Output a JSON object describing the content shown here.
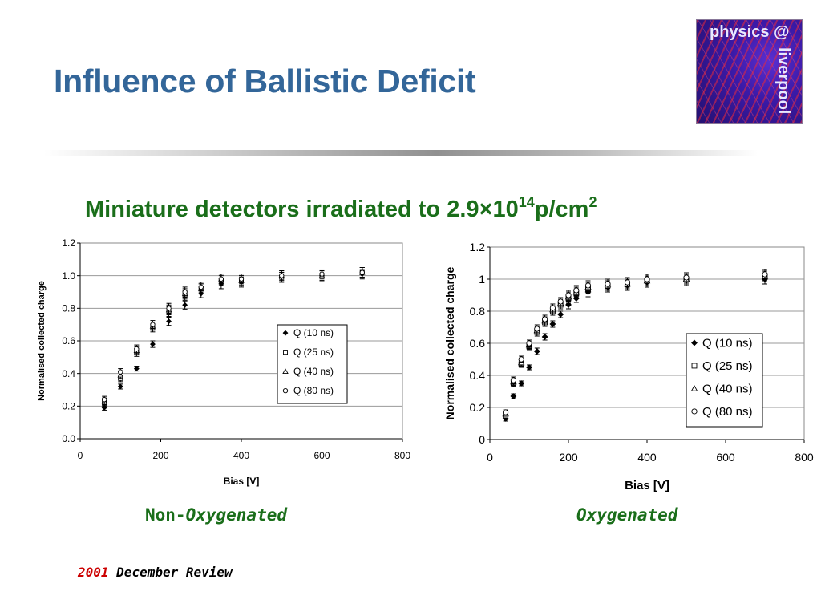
{
  "slide": {
    "title": "Influence of Ballistic Deficit",
    "subtitle_main": "Miniature detectors irradiated to 2.9×10",
    "subtitle_exp": "14",
    "subtitle_unit": "p/cm",
    "subtitle_unit_exp": "2",
    "footer_year": "2001",
    "footer_text": "December Review"
  },
  "logo": {
    "top": "physics @",
    "side": "liverpool"
  },
  "captions": {
    "left_prefix": "Non-",
    "left_main": "Oxygenated",
    "right": "Oxygenated"
  },
  "colors": {
    "title": "#336699",
    "subtitle": "#1a6e1a",
    "footer_year": "#cc0000"
  },
  "chart_data": [
    {
      "type": "scatter",
      "xlabel": "Bias [V]",
      "ylabel": "Normalised collected charge",
      "xlim": [
        0,
        800
      ],
      "ylim": [
        0,
        1.2
      ],
      "xticks": [
        "0",
        "200",
        "400",
        "600",
        "800"
      ],
      "yticks": [
        "0.0",
        "0.2",
        "0.4",
        "0.6",
        "0.8",
        "1.0",
        "1.2"
      ],
      "grid": "horizontal",
      "legend_position": "right",
      "series": [
        {
          "name": "Q (10 ns)",
          "marker": "diamond-filled",
          "x": [
            60,
            100,
            140,
            180,
            220,
            260,
            300,
            350,
            400,
            500,
            600,
            700
          ],
          "y": [
            0.19,
            0.32,
            0.43,
            0.58,
            0.72,
            0.82,
            0.89,
            0.95,
            0.96,
            0.99,
            1.0,
            1.01
          ],
          "err": [
            0.015,
            0.015,
            0.015,
            0.02,
            0.025,
            0.025,
            0.025,
            0.03,
            0.03,
            0.03,
            0.03,
            0.03
          ]
        },
        {
          "name": "Q (25 ns)",
          "marker": "square-open",
          "x": [
            60,
            100,
            140,
            180,
            220,
            260,
            300,
            350,
            400,
            500,
            600,
            700
          ],
          "y": [
            0.22,
            0.37,
            0.53,
            0.68,
            0.78,
            0.88,
            0.92,
            0.97,
            0.97,
            0.99,
            1.0,
            1.02
          ],
          "err": [
            0.02,
            0.02,
            0.025,
            0.025,
            0.03,
            0.03,
            0.03,
            0.03,
            0.03,
            0.03,
            0.03,
            0.03
          ]
        },
        {
          "name": "Q (40 ns)",
          "marker": "triangle-open",
          "x": [
            60,
            100,
            140,
            180,
            220,
            260,
            300,
            350,
            400,
            500,
            600,
            700
          ],
          "y": [
            0.23,
            0.39,
            0.54,
            0.69,
            0.79,
            0.89,
            0.92,
            0.98,
            0.97,
            1.0,
            1.0,
            1.02
          ],
          "err": [
            0.02,
            0.02,
            0.025,
            0.025,
            0.03,
            0.03,
            0.03,
            0.03,
            0.03,
            0.03,
            0.03,
            0.03
          ]
        },
        {
          "name": "Q (80 ns)",
          "marker": "circle-open",
          "x": [
            60,
            100,
            140,
            180,
            220,
            260,
            300,
            350,
            400,
            500,
            600,
            700
          ],
          "y": [
            0.24,
            0.41,
            0.55,
            0.7,
            0.8,
            0.9,
            0.93,
            0.98,
            0.98,
            1.0,
            1.01,
            1.02
          ],
          "err": [
            0.02,
            0.02,
            0.025,
            0.025,
            0.03,
            0.03,
            0.03,
            0.03,
            0.03,
            0.03,
            0.03,
            0.03
          ]
        }
      ]
    },
    {
      "type": "scatter",
      "xlabel": "Bias [V]",
      "ylabel": "Normalised collected charge",
      "xlim": [
        0,
        800
      ],
      "ylim": [
        0,
        1.2
      ],
      "xticks": [
        "0",
        "200",
        "400",
        "600",
        "800"
      ],
      "yticks": [
        "0",
        "0.2",
        "0.4",
        "0.6",
        "0.8",
        "1",
        "1.2"
      ],
      "grid": "horizontal",
      "legend_position": "right",
      "series": [
        {
          "name": "Q (10 ns)",
          "marker": "diamond-filled",
          "x": [
            40,
            60,
            80,
            100,
            120,
            140,
            160,
            180,
            200,
            220,
            250,
            300,
            350,
            400,
            500,
            700
          ],
          "y": [
            0.13,
            0.27,
            0.35,
            0.45,
            0.55,
            0.64,
            0.72,
            0.78,
            0.84,
            0.88,
            0.92,
            0.95,
            0.96,
            0.98,
            0.99,
            1.0
          ],
          "err": [
            0.015,
            0.015,
            0.015,
            0.015,
            0.02,
            0.02,
            0.02,
            0.02,
            0.025,
            0.025,
            0.03,
            0.03,
            0.03,
            0.03,
            0.03,
            0.03
          ]
        },
        {
          "name": "Q (25 ns)",
          "marker": "square-open",
          "x": [
            40,
            60,
            80,
            100,
            120,
            140,
            160,
            180,
            200,
            220,
            250,
            300,
            350,
            400,
            500,
            700
          ],
          "y": [
            0.15,
            0.35,
            0.47,
            0.58,
            0.67,
            0.73,
            0.8,
            0.84,
            0.88,
            0.91,
            0.94,
            0.96,
            0.97,
            0.99,
            1.0,
            1.02
          ],
          "err": [
            0.015,
            0.02,
            0.02,
            0.02,
            0.025,
            0.025,
            0.025,
            0.025,
            0.03,
            0.03,
            0.03,
            0.03,
            0.03,
            0.03,
            0.03,
            0.03
          ]
        },
        {
          "name": "Q (40 ns)",
          "marker": "triangle-open",
          "x": [
            40,
            60,
            80,
            100,
            120,
            140,
            160,
            180,
            200,
            220,
            250,
            300,
            350,
            400,
            500,
            700
          ],
          "y": [
            0.16,
            0.36,
            0.48,
            0.59,
            0.68,
            0.74,
            0.81,
            0.85,
            0.89,
            0.92,
            0.95,
            0.97,
            0.97,
            0.99,
            1.0,
            1.02
          ],
          "err": [
            0.015,
            0.02,
            0.02,
            0.02,
            0.025,
            0.025,
            0.025,
            0.025,
            0.03,
            0.03,
            0.03,
            0.03,
            0.03,
            0.03,
            0.03,
            0.03
          ]
        },
        {
          "name": "Q (80 ns)",
          "marker": "circle-open",
          "x": [
            40,
            60,
            80,
            100,
            120,
            140,
            160,
            180,
            200,
            220,
            250,
            300,
            350,
            400,
            500,
            700
          ],
          "y": [
            0.17,
            0.37,
            0.5,
            0.6,
            0.69,
            0.75,
            0.82,
            0.86,
            0.9,
            0.93,
            0.96,
            0.97,
            0.98,
            1.0,
            1.01,
            1.03
          ],
          "err": [
            0.015,
            0.02,
            0.02,
            0.02,
            0.025,
            0.025,
            0.025,
            0.025,
            0.03,
            0.03,
            0.03,
            0.03,
            0.03,
            0.03,
            0.03,
            0.03
          ]
        }
      ]
    }
  ]
}
